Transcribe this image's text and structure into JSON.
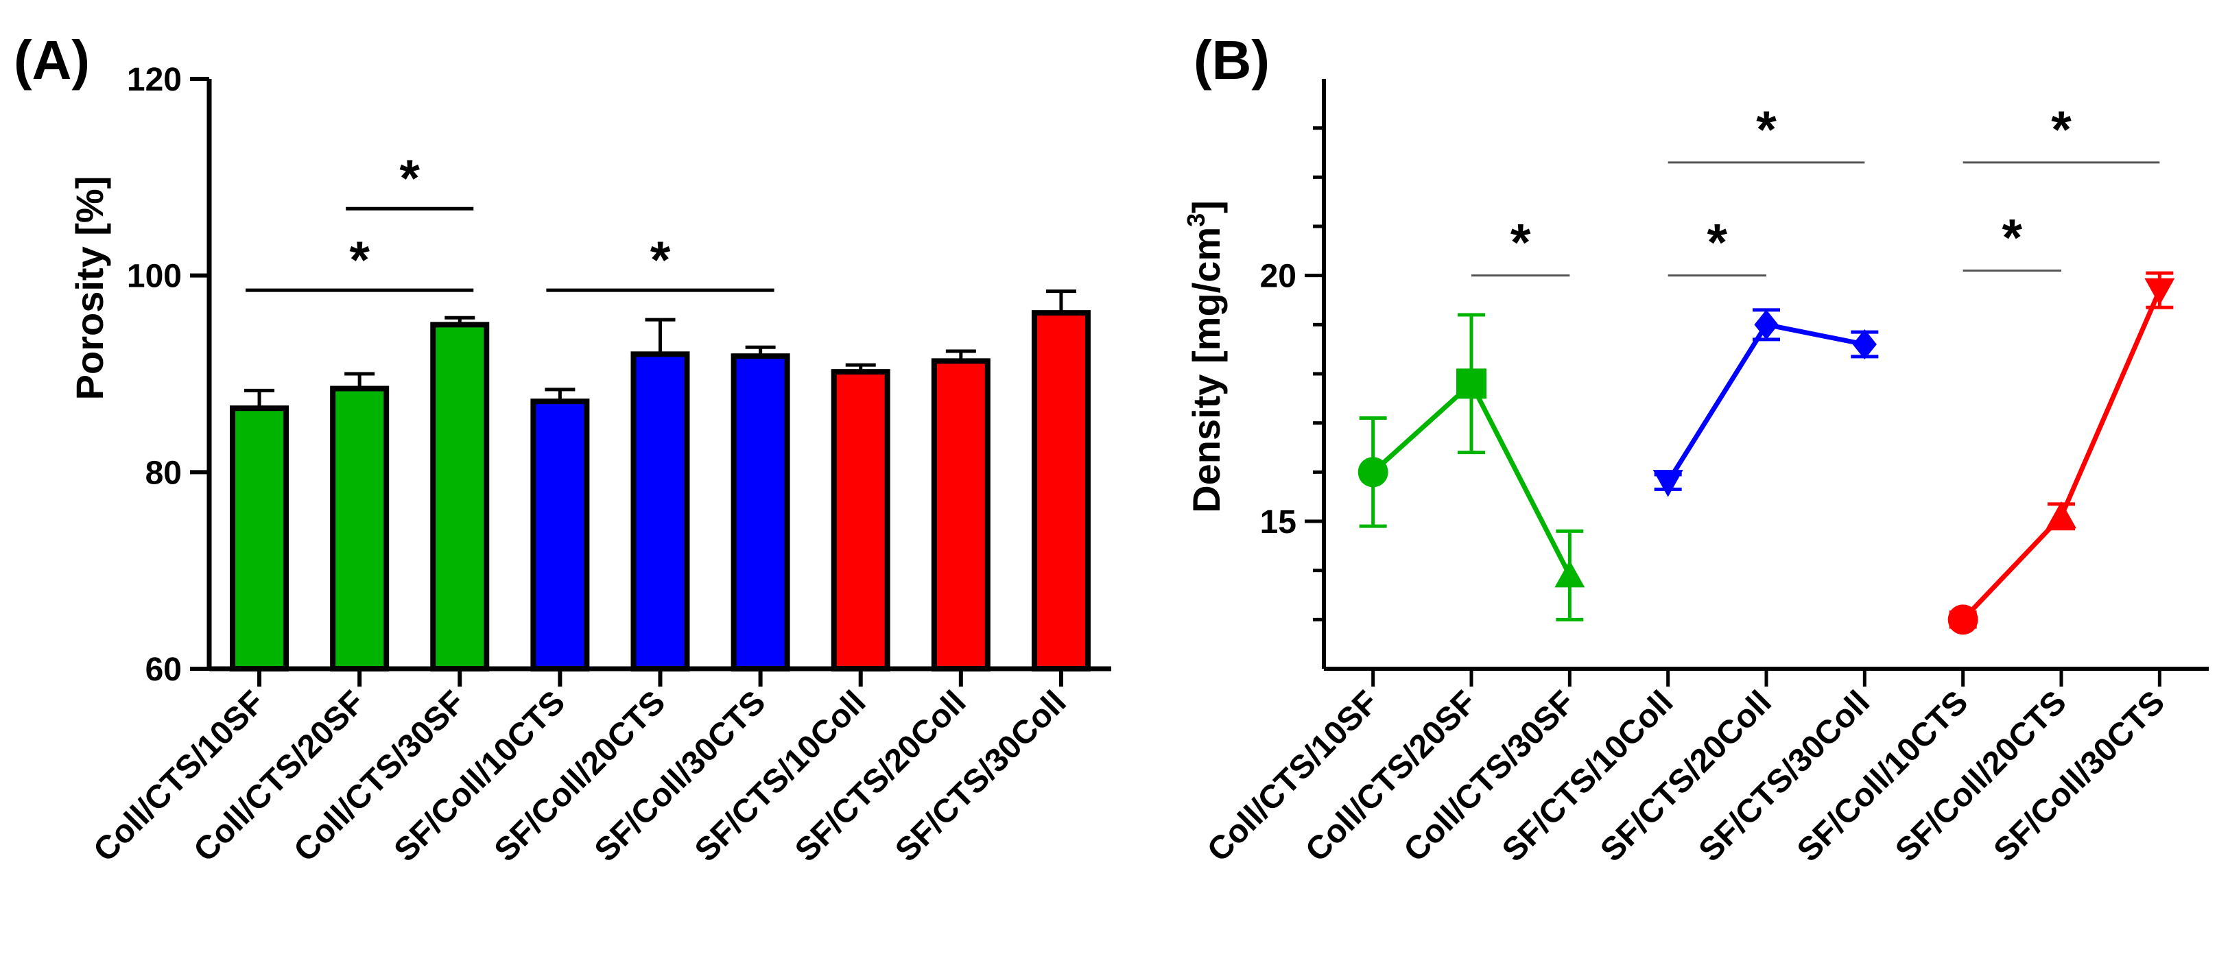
{
  "figure": {
    "colors": {
      "green": "#00b400",
      "blue": "#0000ff",
      "red": "#ff0000",
      "axis": "#000000",
      "sigline": "#555555"
    }
  },
  "chart_data": [
    {
      "panel": "(A)",
      "type": "bar",
      "ylabel": "Porosity [%]",
      "ylim": [
        60,
        120
      ],
      "yticks": [
        "60",
        "80",
        "100",
        "120"
      ],
      "categories": [
        "Coll/CTS/10SF",
        "Coll/CTS/20SF",
        "Coll/CTS/30SF",
        "SF/Coll/10CTS",
        "SF/Coll/20CTS",
        "SF/Coll/30CTS",
        "SF/CTS/10Coll",
        "SF/CTS/20Coll",
        "SF/CTS/30Coll"
      ],
      "values": [
        86.5,
        88.5,
        95.0,
        87.2,
        92.0,
        91.8,
        90.2,
        91.3,
        96.2
      ],
      "errors": [
        1.8,
        1.5,
        0.7,
        1.2,
        3.5,
        0.9,
        0.7,
        1.0,
        2.2
      ],
      "bar_colors": [
        "green",
        "green",
        "green",
        "blue",
        "blue",
        "blue",
        "red",
        "red",
        "red"
      ],
      "significance": [
        {
          "from": 0,
          "to": 2,
          "level": 98.5,
          "label": "*"
        },
        {
          "from": 1,
          "to": 2,
          "level": 106.8,
          "label": "*"
        },
        {
          "from": 3,
          "to": 5,
          "level": 98.5,
          "label": "*"
        }
      ]
    },
    {
      "panel": "(B)",
      "type": "line",
      "ylabel": "Density [mg/cm",
      "ylabel_sup": "3",
      "ylabel_close": "]",
      "ylim": [
        12,
        24
      ],
      "yticks": [
        "15",
        "20"
      ],
      "categories": [
        "Coll/CTS/10SF",
        "Coll/CTS/20SF",
        "Coll/CTS/30SF",
        "SF/CTS/10Coll",
        "SF/CTS/20Coll",
        "SF/CTS/30Coll",
        "SF/Coll/10CTS",
        "SF/Coll/20CTS",
        "SF/Coll/30CTS"
      ],
      "series": [
        {
          "name": "Coll/CTS",
          "color": "green",
          "marker": "circle-square-triangle",
          "x": [
            0,
            1,
            2
          ],
          "values": [
            16.0,
            17.8,
            13.9
          ],
          "errors": [
            1.1,
            1.4,
            0.9
          ]
        },
        {
          "name": "SF/CTS",
          "color": "blue",
          "marker": "triangle-down-diamond",
          "x": [
            3,
            4,
            5
          ],
          "values": [
            15.8,
            19.0,
            18.6
          ],
          "errors": [
            0.15,
            0.3,
            0.25
          ]
        },
        {
          "name": "SF/Coll",
          "color": "red",
          "marker": "circle-triangle-down",
          "x": [
            6,
            7,
            8
          ],
          "values": [
            13.0,
            15.1,
            19.7
          ],
          "errors": [
            0.15,
            0.25,
            0.35
          ]
        }
      ],
      "markers": [
        "circle",
        "square",
        "triangle-up",
        "triangle-down",
        "diamond",
        "diamond",
        "circle",
        "triangle-up",
        "triangle-down"
      ],
      "significance": [
        {
          "from": 1,
          "to": 2,
          "level": 20.0,
          "label": "*"
        },
        {
          "from": 3,
          "to": 4,
          "level": 20.0,
          "label": "*"
        },
        {
          "from": 3,
          "to": 5,
          "level": 22.3,
          "label": "*"
        },
        {
          "from": 6,
          "to": 7,
          "level": 20.1,
          "label": "*"
        },
        {
          "from": 6,
          "to": 8,
          "level": 22.3,
          "label": "*"
        }
      ]
    }
  ]
}
